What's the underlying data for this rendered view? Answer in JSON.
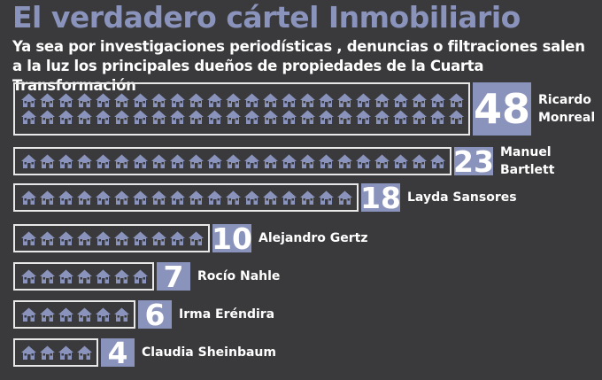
{
  "chart_data": {
    "type": "pictograph",
    "title": "El verdadero cártel Inmobiliario",
    "subtitle": "Ya sea por investigaciones periodísticas , denuncias o filtraciones salen a la luz los principales dueños de propiedades de la Cuarta Transformación",
    "categories": [
      "Ricardo Monreal",
      "Manuel Bartlett",
      "Layda Sansores",
      "Alejandro Gertz",
      "Rocío Nahle",
      "Irma Eréndira",
      "Claudia Sheinbaum"
    ],
    "values": [
      48,
      23,
      18,
      10,
      7,
      6,
      4
    ],
    "color": "#8a93bb"
  }
}
